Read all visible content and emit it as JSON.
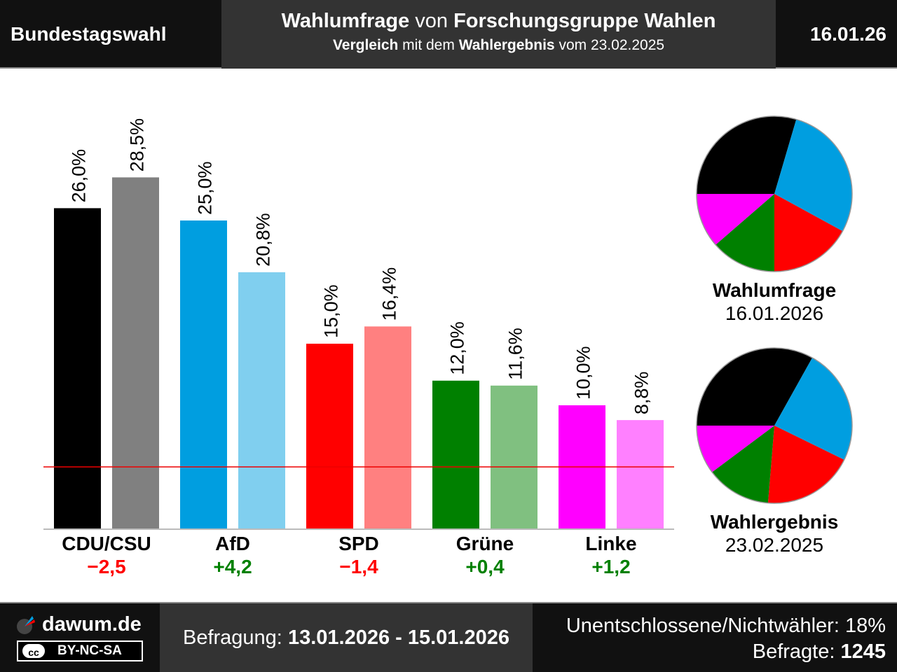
{
  "header": {
    "left": "Bundestagswahl",
    "title_part1": "Wahlumfrage",
    "title_part2": " von ",
    "title_part3": "Forschungsgruppe Wahlen",
    "subtitle_part1": "Vergleich",
    "subtitle_part2": " mit dem ",
    "subtitle_part3": "Wahlergebnis",
    "subtitle_part4": " vom 23.02.2025",
    "right": "16.01.26"
  },
  "chart_data": {
    "type": "bar",
    "categories": [
      "CDU/CSU",
      "AfD",
      "SPD",
      "Grüne",
      "Linke"
    ],
    "series": [
      {
        "name": "Wahlumfrage",
        "values": [
          26.0,
          25.0,
          15.0,
          12.0,
          10.0
        ],
        "labels": [
          "26,0%",
          "25,0%",
          "15,0%",
          "12,0%",
          "10,0%"
        ],
        "colors": [
          "#000000",
          "#009ee0",
          "#ff0000",
          "#008000",
          "#ff00ff"
        ]
      },
      {
        "name": "Wahlergebnis",
        "values": [
          28.5,
          20.8,
          16.4,
          11.6,
          8.8
        ],
        "labels": [
          "28,5%",
          "20,8%",
          "16,4%",
          "11,6%",
          "8,8%"
        ],
        "colors": [
          "#808080",
          "#80cfef",
          "#ff8080",
          "#80c080",
          "#ff80ff"
        ]
      }
    ],
    "differences": [
      "−2,5",
      "+4,2",
      "−1,4",
      "+0,4",
      "+1,2"
    ],
    "difference_colors": [
      "#ff0000",
      "#008000",
      "#ff0000",
      "#008000",
      "#008000"
    ],
    "threshold": 5,
    "ylim": [
      0,
      30
    ],
    "grid": false
  },
  "pies": [
    {
      "label": "Wahlumfrage",
      "date": "16.01.2026",
      "values": [
        26.0,
        25.0,
        15.0,
        12.0,
        10.0
      ],
      "colors": [
        "#000000",
        "#009ee0",
        "#ff0000",
        "#008000",
        "#ff00ff"
      ]
    },
    {
      "label": "Wahlergebnis",
      "date": "23.02.2025",
      "values": [
        28.5,
        20.8,
        16.4,
        11.6,
        8.8
      ],
      "colors": [
        "#000000",
        "#009ee0",
        "#ff0000",
        "#008000",
        "#ff00ff"
      ]
    }
  ],
  "footer": {
    "site": "dawum.de",
    "license": "BY-NC-SA",
    "cc": "cc",
    "survey_label": "Befragung: ",
    "survey_dates": "13.01.2026 - 15.01.2026",
    "undecided": "Unentschlossene/Nichtwähler: 18%",
    "respondents_label": "Befragte: ",
    "respondents": "1245"
  }
}
